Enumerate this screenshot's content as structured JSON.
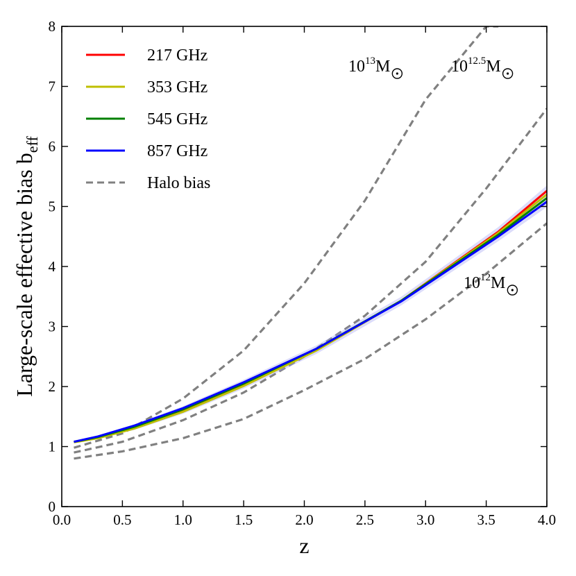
{
  "chart_data": {
    "type": "line",
    "title": "",
    "xlabel": "z",
    "ylabel": "Large-scale effective bias b",
    "ylabel_subscript": "eff",
    "xlim": [
      0.0,
      4.0
    ],
    "ylim": [
      0,
      8
    ],
    "xticks": [
      0.0,
      0.5,
      1.0,
      1.5,
      2.0,
      2.5,
      3.0,
      3.5,
      4.0
    ],
    "xtick_labels": [
      "0.0",
      "0.5",
      "1.0",
      "1.5",
      "2.0",
      "2.5",
      "3.0",
      "3.5",
      "4.0"
    ],
    "yticks": [
      0,
      1,
      2,
      3,
      4,
      5,
      6,
      7,
      8
    ],
    "ytick_labels": [
      "0",
      "1",
      "2",
      "3",
      "4",
      "5",
      "6",
      "7",
      "8"
    ],
    "grid": false,
    "legend_position": "top-left",
    "series": [
      {
        "name": "217 GHz",
        "color": "#ff0000",
        "style": "solid",
        "x": [
          0.1,
          0.3,
          0.6,
          1.0,
          1.5,
          2.1,
          2.8,
          3.6,
          4.0
        ],
        "y": [
          1.08,
          1.15,
          1.31,
          1.6,
          2.03,
          2.62,
          3.43,
          4.58,
          5.26
        ]
      },
      {
        "name": "353 GHz",
        "color": "#bfbf00",
        "style": "solid",
        "x": [
          0.1,
          0.3,
          0.6,
          1.0,
          1.5,
          2.1,
          2.8,
          3.6,
          4.0
        ],
        "y": [
          1.07,
          1.14,
          1.3,
          1.58,
          2.01,
          2.6,
          3.43,
          4.56,
          5.2
        ]
      },
      {
        "name": "545 GHz",
        "color": "#008000",
        "style": "solid",
        "x": [
          0.1,
          0.3,
          0.6,
          1.0,
          1.5,
          2.1,
          2.8,
          3.6,
          4.0
        ],
        "y": [
          1.08,
          1.16,
          1.33,
          1.62,
          2.05,
          2.63,
          3.43,
          4.53,
          5.14
        ]
      },
      {
        "name": "857 GHz",
        "color": "#0000ff",
        "style": "solid",
        "x": [
          0.1,
          0.3,
          0.6,
          1.0,
          1.5,
          2.1,
          2.8,
          3.6,
          4.0
        ],
        "y": [
          1.08,
          1.17,
          1.35,
          1.64,
          2.07,
          2.63,
          3.42,
          4.5,
          5.08
        ]
      },
      {
        "name": "Halo bias",
        "color": "#808080",
        "style": "dashed"
      }
    ],
    "halo_curves": [
      {
        "label_base": "10",
        "label_exp": "13",
        "label_unit": "M",
        "mass": "10^13",
        "x": [
          0.1,
          0.5,
          1.0,
          1.5,
          2.0,
          2.5,
          3.0,
          3.5,
          3.6
        ],
        "y": [
          0.98,
          1.22,
          1.8,
          2.6,
          3.72,
          5.1,
          6.78,
          8.0,
          8.0
        ]
      },
      {
        "label_base": "10",
        "label_exp": "12.5",
        "label_unit": "M",
        "mass": "10^12.5",
        "x": [
          0.1,
          0.5,
          1.0,
          1.5,
          2.0,
          2.5,
          3.0,
          3.5,
          4.0
        ],
        "y": [
          0.9,
          1.08,
          1.44,
          1.9,
          2.5,
          3.18,
          4.08,
          5.3,
          6.63
        ]
      },
      {
        "label_base": "10",
        "label_exp": "12",
        "label_unit": "M",
        "mass": "10^12",
        "x": [
          0.1,
          0.5,
          1.0,
          1.5,
          2.0,
          2.5,
          3.0,
          3.5,
          4.0
        ],
        "y": [
          0.8,
          0.92,
          1.14,
          1.46,
          1.94,
          2.46,
          3.12,
          3.88,
          4.72
        ]
      }
    ]
  }
}
